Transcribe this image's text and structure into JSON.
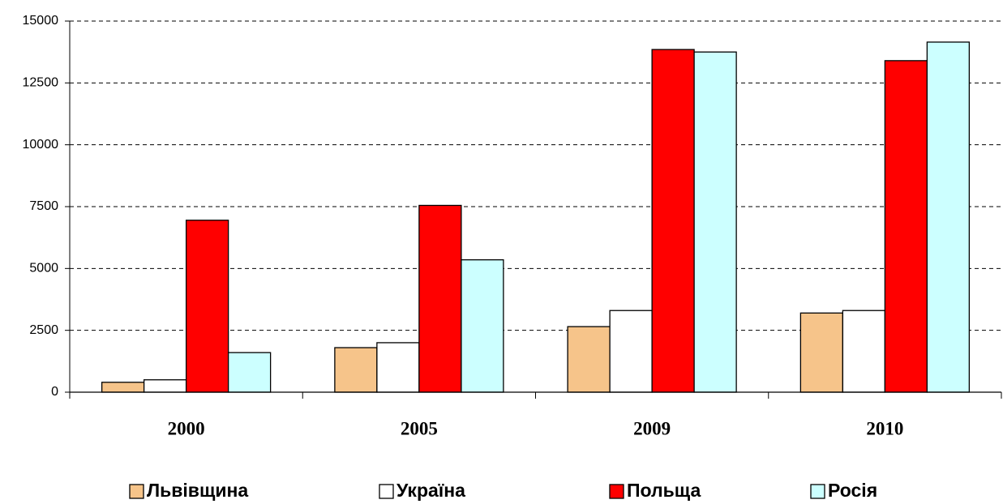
{
  "chart_data": {
    "type": "bar",
    "categories": [
      "2000",
      "2005",
      "2009",
      "2010"
    ],
    "series": [
      {
        "name": "Львівщина",
        "color": "#f6c48a",
        "values": [
          400,
          1800,
          2650,
          3200
        ]
      },
      {
        "name": "Україна",
        "color": "#ffffff",
        "values": [
          500,
          2000,
          3300,
          3300
        ]
      },
      {
        "name": "Польща",
        "color": "#ff0000",
        "values": [
          6950,
          7550,
          13850,
          13400
        ]
      },
      {
        "name": "Росія",
        "color": "#ccffff",
        "values": [
          1600,
          5350,
          13750,
          14150
        ]
      }
    ],
    "ylim": [
      0,
      15000
    ],
    "yticks": [
      0,
      2500,
      5000,
      7500,
      10000,
      12500,
      15000
    ],
    "grid": true,
    "legend": "bottom"
  }
}
